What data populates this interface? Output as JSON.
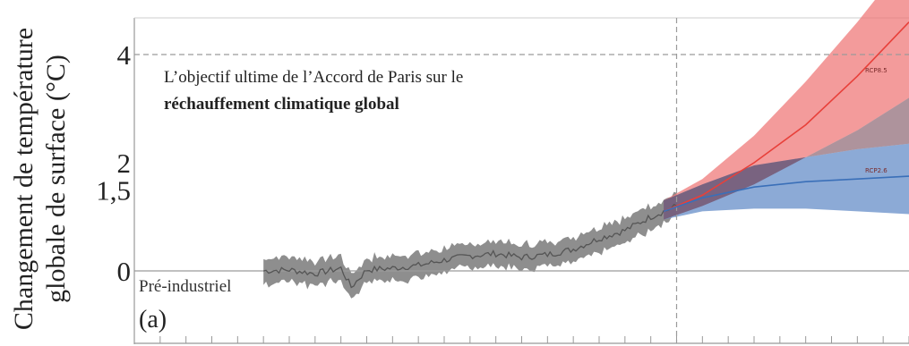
{
  "chart_data": {
    "type": "line",
    "ylabel_line1": "Changement de température",
    "ylabel_line2": "globale de surface (°C)",
    "y_ticks": [
      {
        "value": 4,
        "label": "4"
      },
      {
        "value": 2,
        "label": "2"
      },
      {
        "value": 1.5,
        "label": "1,5"
      },
      {
        "value": 0,
        "label": "0"
      }
    ],
    "ylim": [
      -1.3,
      4.7
    ],
    "xlim": [
      1800,
      2100
    ],
    "panel_label": "(a)",
    "baseline_label": "Pré-industriel",
    "annotation": {
      "line1": "L’objectif ultime de l’Accord de Paris sur le",
      "line2": "réchauffement climatique global"
    },
    "targets": [
      {
        "value": 2,
        "color": "#d42a1f"
      },
      {
        "value": 1.5,
        "color": "#d42a1f"
      }
    ],
    "divider_year": 2010,
    "historical": {
      "color": "#555555",
      "band_color": "#7a7a7a",
      "x": [
        1850,
        1860,
        1870,
        1880,
        1884,
        1890,
        1900,
        1910,
        1920,
        1930,
        1940,
        1950,
        1960,
        1970,
        1980,
        1990,
        2000,
        2010
      ],
      "y": [
        0.0,
        0.02,
        -0.05,
        0.05,
        -0.3,
        0.02,
        0.05,
        0.1,
        0.2,
        0.28,
        0.32,
        0.25,
        0.3,
        0.4,
        0.6,
        0.75,
        1.0,
        1.2
      ],
      "band": 0.45
    },
    "series": [
      {
        "name": "RCP8.5",
        "color": "#e8403a",
        "band_color": "#ef7a7a",
        "x": [
          2005,
          2020,
          2040,
          2060,
          2080,
          2100
        ],
        "y": [
          1.1,
          1.4,
          2.0,
          2.7,
          3.6,
          4.6
        ],
        "band_low": [
          0.95,
          1.2,
          1.6,
          2.1,
          2.6,
          3.2
        ],
        "band_high": [
          1.3,
          1.7,
          2.5,
          3.5,
          4.6,
          5.8
        ]
      },
      {
        "name": "RCP2.6",
        "color": "#3a6fb8",
        "band_color": "#6f95cc",
        "x": [
          2005,
          2020,
          2040,
          2060,
          2080,
          2100
        ],
        "y": [
          1.1,
          1.35,
          1.55,
          1.65,
          1.7,
          1.75
        ],
        "band_low": [
          0.95,
          1.1,
          1.15,
          1.15,
          1.1,
          1.05
        ],
        "band_high": [
          1.3,
          1.6,
          1.95,
          2.1,
          2.25,
          2.35
        ]
      }
    ]
  }
}
